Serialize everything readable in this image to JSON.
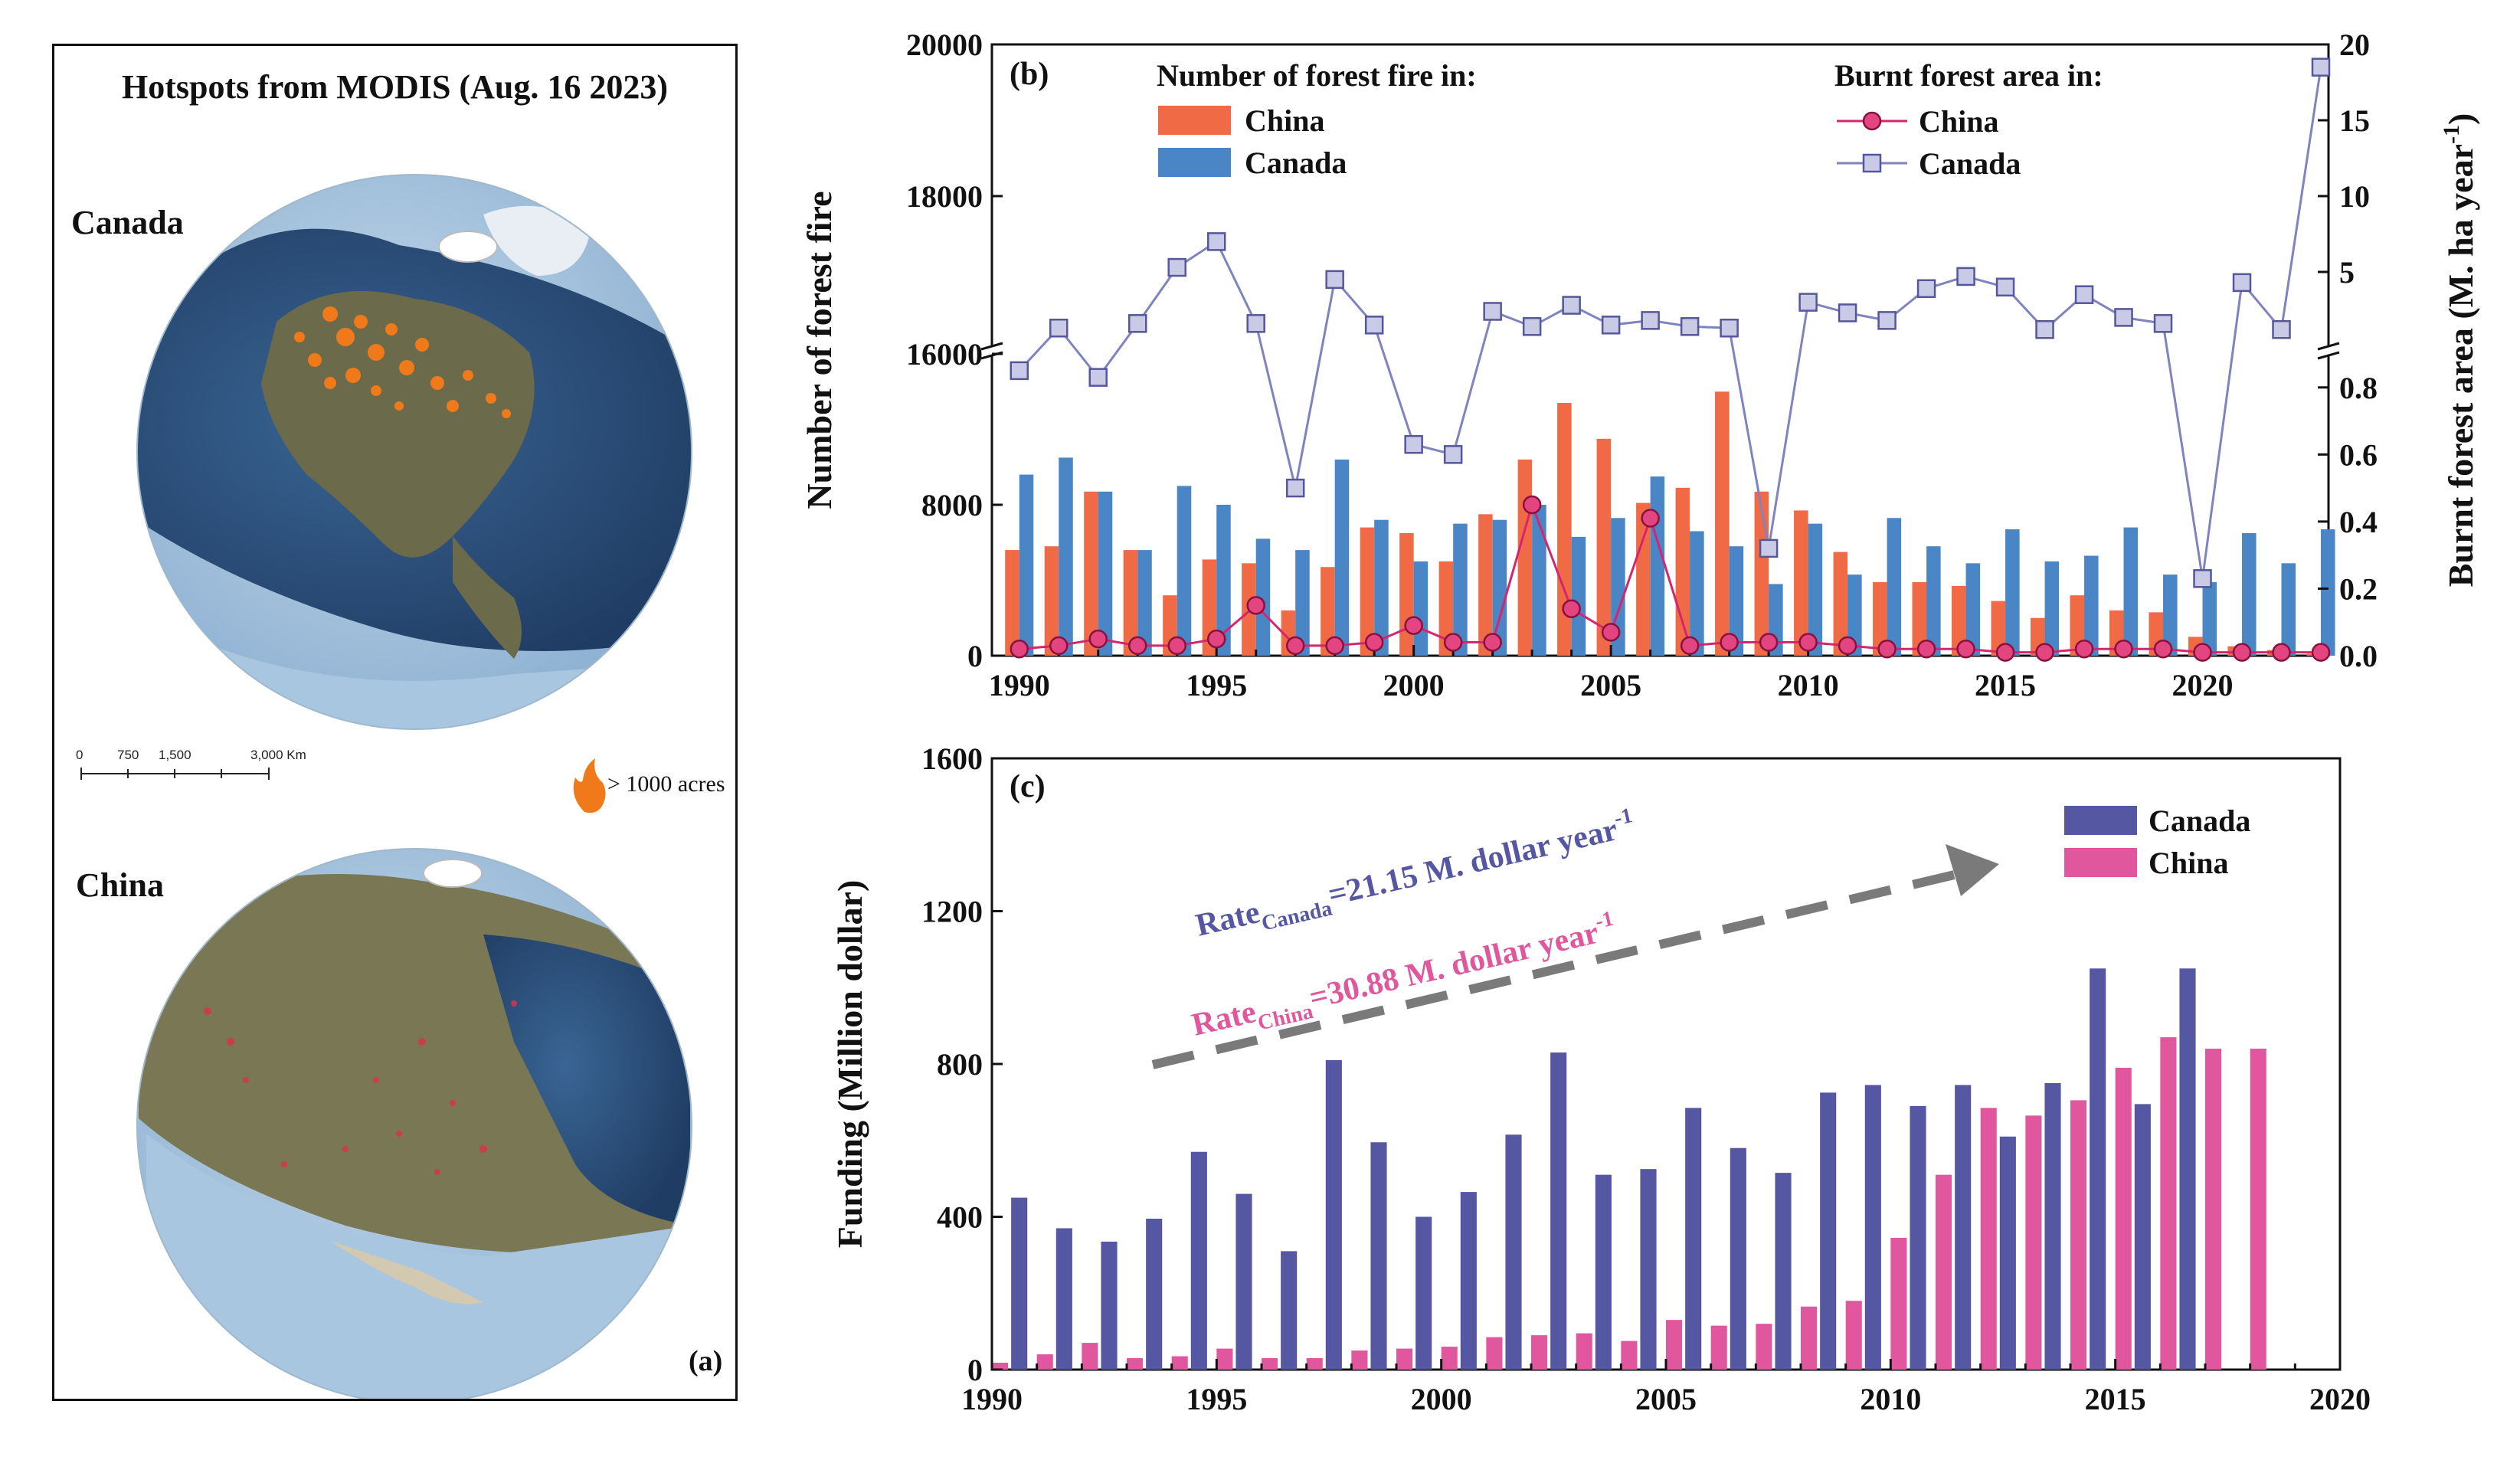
{
  "panel_a": {
    "title": "Hotspots from MODIS (Aug. 16 2023)",
    "globe_top_label": "Canada",
    "globe_bottom_label": "China",
    "scale_ticks": [
      "0",
      "750",
      "1,500",
      "3,000 Km"
    ],
    "fire_legend": "> 1000 acres",
    "panel_tag": "(a)",
    "colors": {
      "ocean": "#2a4d7a",
      "ice_rim": "#a9c6e0",
      "land_na": "#6b6a4a",
      "land_asia": "#7a7854",
      "fire": "#f07a1a"
    }
  },
  "chart_data": [
    {
      "id": "b",
      "type": "bar+line",
      "panel_tag": "(b)",
      "xlabel": "",
      "ylabel_left": "Number of forest fire",
      "ylabel_right_main": "Burnt forest area (M. ha year",
      "ylabel_right_sup": "-1",
      "ylabel_right_tail": ")",
      "legend_bar_title": "Number of forest fire in:",
      "legend_line_title": "Burnt forest area in:",
      "x": [
        1990,
        1991,
        1992,
        1993,
        1994,
        1995,
        1996,
        1997,
        1998,
        1999,
        2000,
        2001,
        2002,
        2003,
        2004,
        2005,
        2006,
        2007,
        2008,
        2009,
        2010,
        2011,
        2012,
        2013,
        2014,
        2015,
        2016,
        2017,
        2018,
        2019,
        2020,
        2021,
        2022,
        2023
      ],
      "x_ticks": [
        1990,
        1995,
        2000,
        2005,
        2010,
        2015,
        2020
      ],
      "left_axis": {
        "lower_range": [
          0,
          16000
        ],
        "lower_ticks": [
          0,
          8000,
          16000
        ],
        "upper_range": [
          16000,
          20000
        ],
        "upper_ticks": [
          16000,
          18000,
          20000
        ]
      },
      "right_axis": {
        "lower_range": [
          0,
          0.9
        ],
        "lower_ticks": [
          0.0,
          0.2,
          0.4,
          0.6,
          0.8
        ],
        "upper_range": [
          0,
          20
        ],
        "upper_ticks": [
          5,
          10,
          15,
          20
        ]
      },
      "bar_series": [
        {
          "name": "China",
          "color": "#ef6a45",
          "values": [
            5600,
            5800,
            8700,
            5600,
            3200,
            5100,
            4900,
            2400,
            4700,
            6800,
            6500,
            5000,
            7500,
            10400,
            13400,
            11500,
            8100,
            8900,
            14000,
            8700,
            7700,
            5500,
            3900,
            3900,
            3700,
            2900,
            2000,
            3200,
            2400,
            2300,
            1000,
            500,
            300,
            100
          ]
        },
        {
          "name": "Canada",
          "color": "#4a86c5",
          "values": [
            9600,
            10500,
            8700,
            5600,
            9000,
            8000,
            6200,
            5600,
            10400,
            7200,
            5000,
            7000,
            7200,
            8000,
            6300,
            7300,
            9500,
            6600,
            5800,
            3800,
            7000,
            4300,
            7300,
            5800,
            4900,
            6700,
            5000,
            5300,
            6800,
            4300,
            3900,
            6500,
            4900,
            6700
          ]
        }
      ],
      "line_series": [
        {
          "name": "China",
          "color": "#d5256f",
          "marker": "circle",
          "axis": "lower",
          "values": [
            0.02,
            0.03,
            0.05,
            0.03,
            0.03,
            0.05,
            0.15,
            0.03,
            0.03,
            0.04,
            0.09,
            0.04,
            0.04,
            0.45,
            0.14,
            0.07,
            0.41,
            0.03,
            0.04,
            0.04,
            0.04,
            0.03,
            0.02,
            0.02,
            0.02,
            0.01,
            0.01,
            0.02,
            0.02,
            0.02,
            0.01,
            0.01,
            0.01,
            0.01
          ]
        },
        {
          "name": "Canada",
          "color": "#7f83c0",
          "marker": "square",
          "values": [
            0.85,
            1.3,
            0.83,
            1.6,
            5.3,
            7.0,
            1.6,
            0.5,
            4.5,
            1.5,
            0.63,
            0.6,
            2.4,
            1.4,
            2.8,
            1.5,
            1.8,
            1.4,
            1.3,
            0.32,
            3.0,
            2.3,
            1.8,
            3.9,
            4.7,
            4.0,
            1.2,
            3.5,
            2.0,
            1.6,
            0.23,
            4.3,
            1.2,
            18.5
          ],
          "axis_per_point": [
            "lower",
            "upper",
            "lower",
            "upper",
            "upper",
            "upper",
            "upper",
            "lower",
            "upper",
            "upper",
            "lower",
            "lower",
            "upper",
            "upper",
            "upper",
            "upper",
            "upper",
            "upper",
            "upper",
            "lower",
            "upper",
            "upper",
            "upper",
            "upper",
            "upper",
            "upper",
            "upper",
            "upper",
            "upper",
            "upper",
            "lower",
            "upper",
            "upper",
            "upper"
          ]
        }
      ]
    },
    {
      "id": "c",
      "type": "bar",
      "panel_tag": "(c)",
      "ylabel": "Funding (Million dollar)",
      "xlabel": "",
      "ylim": [
        0,
        1600
      ],
      "y_ticks": [
        0,
        400,
        800,
        1200,
        1600
      ],
      "x_range": [
        1990,
        2020
      ],
      "x_ticks": [
        1990,
        1995,
        2000,
        2005,
        2010,
        2015,
        2020
      ],
      "series": [
        {
          "name": "Canada",
          "color": "#5657a3",
          "x": [
            1990,
            1991,
            1992,
            1993,
            1994,
            1995,
            1996,
            1997,
            1998,
            1999,
            2000,
            2001,
            2002,
            2003,
            2004,
            2005,
            2006,
            2007,
            2008,
            2009,
            2010,
            2011,
            2012,
            2013,
            2014,
            2015,
            2016
          ],
          "values": [
            450,
            370,
            335,
            395,
            570,
            460,
            310,
            810,
            595,
            400,
            465,
            615,
            830,
            510,
            525,
            685,
            580,
            515,
            725,
            745,
            690,
            745,
            610,
            750,
            1050,
            695,
            1050
          ]
        },
        {
          "name": "China",
          "color": "#e1579d",
          "x": [
            1990,
            1991,
            1992,
            1993,
            1994,
            1995,
            1996,
            1997,
            1998,
            1999,
            2000,
            2001,
            2002,
            2003,
            2004,
            2005,
            2006,
            2007,
            2008,
            2009,
            2010,
            2011,
            2012,
            2013,
            2014,
            2015,
            2016,
            2017,
            2018
          ],
          "values": [
            18,
            40,
            70,
            30,
            35,
            55,
            30,
            30,
            50,
            55,
            60,
            85,
            90,
            95,
            75,
            130,
            115,
            120,
            165,
            180,
            345,
            510,
            685,
            665,
            705,
            790,
            870,
            840,
            840
          ]
        }
      ],
      "annotation_canada": {
        "prefix": "Rate",
        "sub": "Canada",
        "mid": "=21.15 M. dollar year",
        "sup": "-1",
        "color": "#5657a3"
      },
      "annotation_china": {
        "prefix": "Rate",
        "sub": "China",
        "mid": "=30.88 M. dollar year",
        "sup": "-1",
        "color": "#e1579d"
      }
    }
  ]
}
